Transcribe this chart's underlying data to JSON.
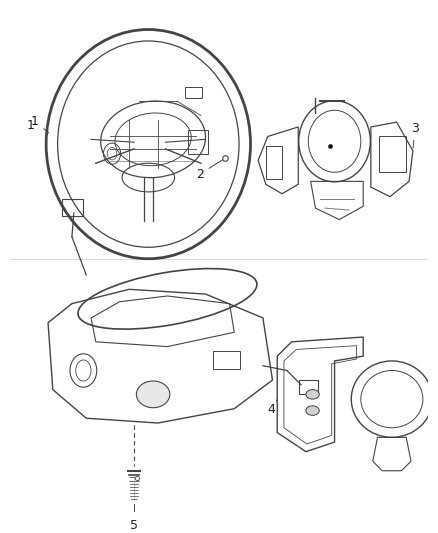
{
  "background_color": "#ffffff",
  "line_color": "#444444",
  "label_color": "#222222",
  "figsize": [
    4.38,
    5.33
  ],
  "dpi": 100
}
